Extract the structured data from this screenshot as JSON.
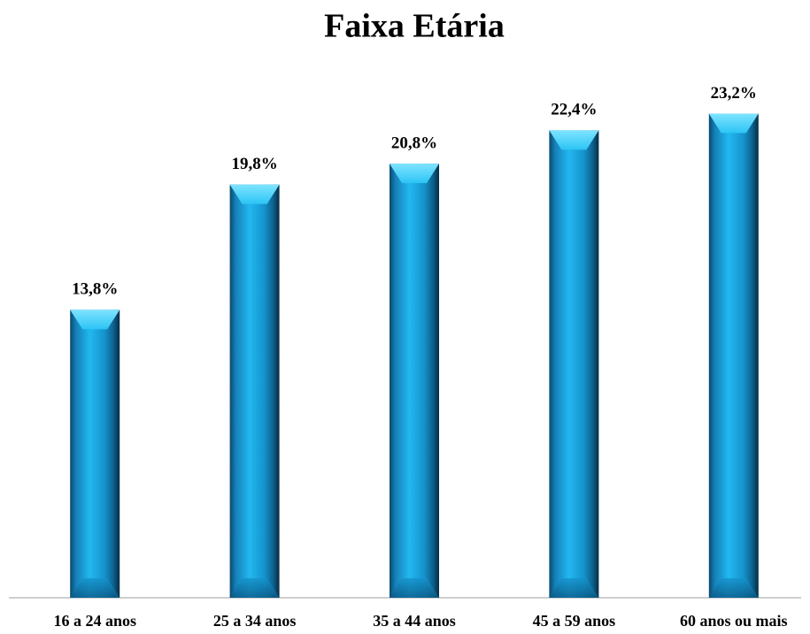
{
  "chart_data": {
    "type": "bar",
    "title": "Faixa Etária",
    "categories": [
      "16 a 24 anos",
      "25 a 34 anos",
      "35 a 44 anos",
      "45 a 59 anos",
      "60 anos ou mais"
    ],
    "values": [
      13.8,
      19.8,
      20.8,
      22.4,
      23.2
    ],
    "value_labels": [
      "13,8%",
      "19,8%",
      "20,8%",
      "22,4%",
      "23,2%"
    ],
    "color": "#1aa3e0"
  }
}
